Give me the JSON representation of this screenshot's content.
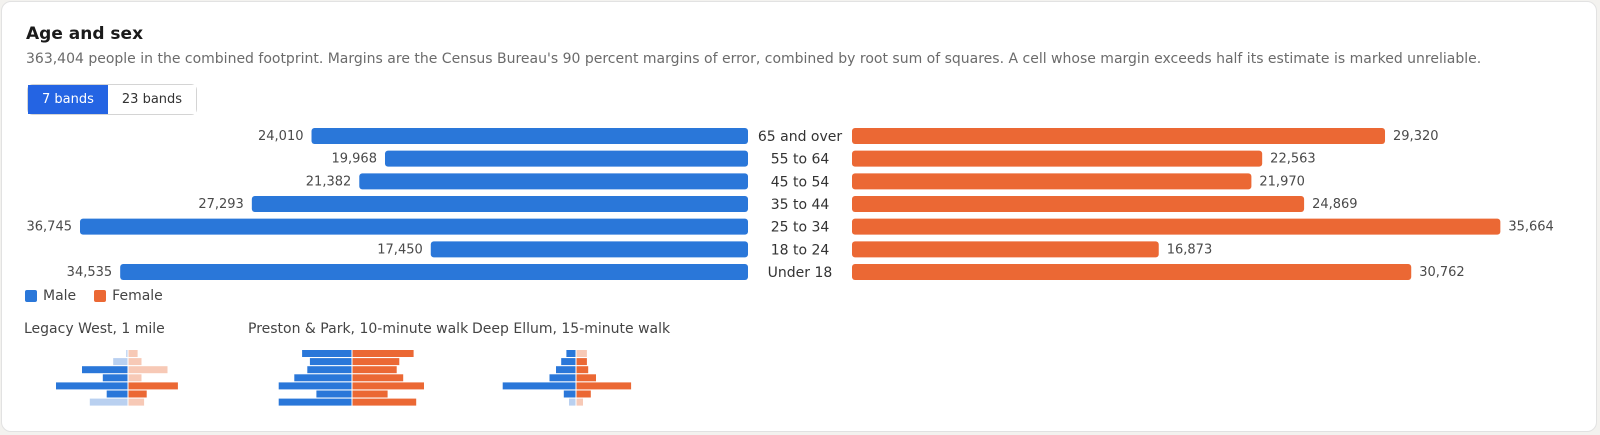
{
  "header": {
    "title": "Age and sex",
    "subtitle": "363,404 people in the combined footprint. Margins are the Census Bureau's 90 percent margins of error, combined by root sum of squares. A cell whose margin exceeds half its estimate is marked unreliable."
  },
  "toggle": {
    "seven": "7 bands",
    "twentythree": "23 bands"
  },
  "colors": {
    "male": "#2a77d9",
    "female": "#eb6834",
    "male_light": "#b9d0f0",
    "female_light": "#f7c9b6",
    "accent": "#2464e3"
  },
  "chart_data": {
    "type": "bar",
    "categories": [
      "65 and over",
      "55 to 64",
      "45 to 54",
      "35 to 44",
      "25 to 34",
      "18 to 24",
      "Under 18"
    ],
    "series": [
      {
        "name": "Male",
        "values": [
          24010,
          19968,
          21382,
          27293,
          36745,
          17450,
          34535
        ],
        "labels": [
          "24,010",
          "19,968",
          "21,382",
          "27,293",
          "36,745",
          "17,450",
          "34,535"
        ]
      },
      {
        "name": "Female",
        "values": [
          29320,
          22563,
          21970,
          24869,
          35664,
          16873,
          30762
        ],
        "labels": [
          "29,320",
          "22,563",
          "21,970",
          "24,869",
          "35,664",
          "16,873",
          "30,762"
        ]
      }
    ],
    "xlim": [
      0,
      36745
    ]
  },
  "legend": {
    "male": "Male",
    "female": "Female"
  },
  "minis": [
    {
      "title": "Legacy West, 1 mile",
      "male": [
        1,
        11,
        35,
        19,
        55,
        16,
        29
      ],
      "female": [
        7,
        10,
        30,
        10,
        38,
        14,
        12
      ],
      "male_unreliable": [
        true,
        true,
        false,
        false,
        false,
        false,
        true
      ],
      "female_unreliable": [
        true,
        true,
        true,
        true,
        false,
        false,
        true
      ]
    },
    {
      "title": "Preston & Park, 10-minute walk",
      "male": [
        38,
        32,
        34,
        44,
        56,
        27,
        56
      ],
      "female": [
        47,
        36,
        34,
        39,
        55,
        27,
        49
      ],
      "male_unreliable": [
        false,
        false,
        false,
        false,
        false,
        false,
        false
      ],
      "female_unreliable": [
        false,
        false,
        false,
        false,
        false,
        false,
        false
      ]
    },
    {
      "title": "Deep Ellum, 15-minute walk",
      "male": [
        7,
        11,
        15,
        20,
        56,
        9,
        5
      ],
      "female": [
        8,
        8,
        9,
        15,
        42,
        11,
        5
      ],
      "male_unreliable": [
        false,
        false,
        false,
        false,
        false,
        false,
        true
      ],
      "female_unreliable": [
        true,
        false,
        false,
        false,
        false,
        false,
        true
      ]
    }
  ]
}
